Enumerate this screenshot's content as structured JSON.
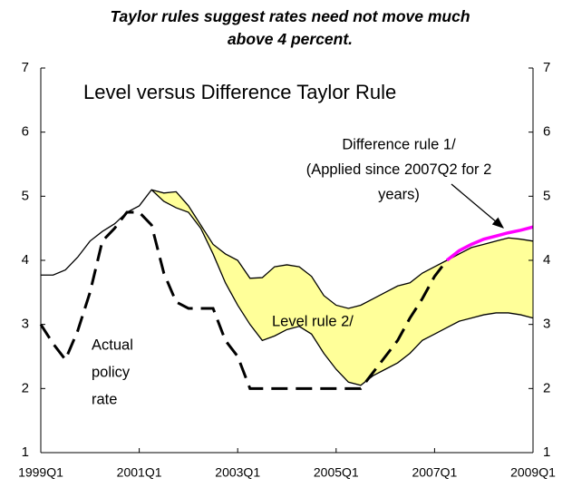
{
  "chart_data": {
    "type": "line",
    "title": [
      "Taylor rules suggest rates need not move much",
      "above 4 percent."
    ],
    "subtitle": "Level versus Difference Taylor Rule",
    "categories": [
      "1999Q1",
      null,
      null,
      null,
      null,
      null,
      null,
      null,
      "2001Q1",
      null,
      null,
      null,
      null,
      null,
      null,
      null,
      "2003Q1",
      null,
      null,
      null,
      null,
      null,
      null,
      null,
      "2005Q1",
      null,
      null,
      null,
      null,
      null,
      null,
      null,
      "2007Q1",
      null,
      null,
      null,
      null,
      null,
      null,
      null,
      "2009Q1"
    ],
    "ylim": [
      1,
      7
    ],
    "yticks": [
      1,
      2,
      3,
      4,
      5,
      6,
      7
    ],
    "y2lim": [
      1,
      7
    ],
    "y2ticks": [
      1,
      2,
      3,
      4,
      5,
      6,
      7
    ],
    "band": {
      "color": "#ffff99",
      "upper": [
        3.77,
        3.77,
        3.85,
        4.05,
        4.3,
        4.45,
        4.57,
        4.75,
        4.85,
        5.1,
        5.05,
        5.07,
        4.85,
        4.55,
        4.25,
        4.1,
        4.0,
        3.72,
        3.73,
        3.9,
        3.93,
        3.9,
        3.75,
        3.45,
        3.3,
        3.25,
        3.3,
        3.4,
        3.5,
        3.6,
        3.65,
        3.8,
        3.9,
        4.0,
        4.1,
        4.2,
        4.25,
        4.3,
        4.35,
        4.33,
        4.3
      ],
      "lower": [
        null,
        null,
        null,
        null,
        null,
        null,
        null,
        null,
        null,
        5.1,
        4.92,
        4.82,
        4.75,
        4.5,
        4.1,
        3.65,
        3.3,
        3.0,
        2.75,
        2.82,
        2.92,
        2.97,
        2.85,
        2.55,
        2.3,
        2.1,
        2.05,
        2.2,
        2.3,
        2.4,
        2.55,
        2.75,
        2.85,
        2.95,
        3.05,
        3.1,
        3.15,
        3.18,
        3.18,
        3.15,
        3.1
      ]
    },
    "series": [
      {
        "color": "#000000",
        "dashed": true,
        "values": [
          3.0,
          2.7,
          2.45,
          2.9,
          3.5,
          4.3,
          4.5,
          4.75,
          4.75,
          4.55,
          3.8,
          3.35,
          3.25,
          3.25,
          3.25,
          2.75,
          2.5,
          2.0,
          2.0,
          2.0,
          2.0,
          2.0,
          2.0,
          2.0,
          2.0,
          2.0,
          2.0,
          2.25,
          2.5,
          2.75,
          3.1,
          3.4,
          3.75,
          4.0,
          null,
          null,
          null,
          null,
          null,
          null,
          null
        ]
      },
      {
        "color": "#ff00ff",
        "dashed": false,
        "values": [
          null,
          null,
          null,
          null,
          null,
          null,
          null,
          null,
          null,
          null,
          null,
          null,
          null,
          null,
          null,
          null,
          null,
          null,
          null,
          null,
          null,
          null,
          null,
          null,
          null,
          null,
          null,
          null,
          null,
          null,
          null,
          null,
          null,
          4.0,
          4.15,
          4.25,
          4.33,
          4.38,
          4.43,
          4.47,
          4.52
        ]
      }
    ],
    "annotations": [
      {
        "lines": [
          "Difference rule 1/",
          "(Applied since 2007Q2 for 2",
          "years)"
        ]
      },
      {
        "lines": [
          "Level rule 2/"
        ]
      },
      {
        "lines": [
          "Actual",
          "policy",
          "rate"
        ]
      }
    ]
  }
}
